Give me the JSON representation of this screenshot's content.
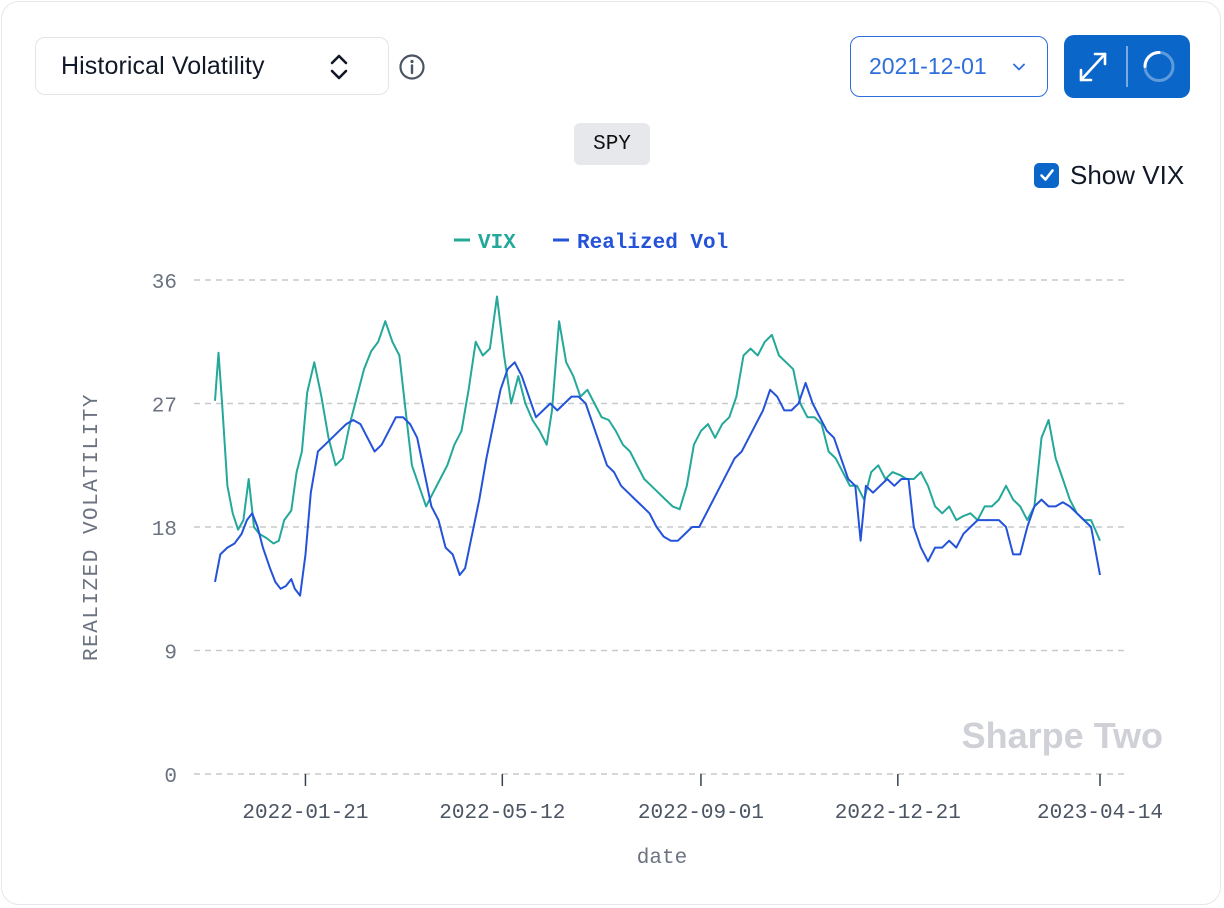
{
  "toolbar": {
    "metric_label": "Historical Volatility",
    "date_value": "2021-12-01",
    "show_vix_label": "Show VIX",
    "show_vix_checked": true,
    "accent_color": "#0a66c9"
  },
  "icons": {
    "metric_chevron": "up-down-chevron-icon",
    "info": "info-icon",
    "date_chevron": "chevron-down-icon",
    "expand": "expand-icon",
    "refresh": "refresh-spinner-icon",
    "checkbox": "checkmark-icon"
  },
  "ticker": "SPY",
  "watermark": "Sharpe Two",
  "chart_data": {
    "type": "line",
    "title": "",
    "xlabel": "date",
    "ylabel": "REALIZED VOLATILITY",
    "ylim": [
      0,
      36
    ],
    "yticks": [
      "0",
      "9",
      "18",
      "27",
      "36"
    ],
    "xlim": [
      "2021-12-01",
      "2023-04-14"
    ],
    "xticks": [
      "2022-01-21",
      "2022-05-12",
      "2022-09-01",
      "2022-12-21",
      "2023-04-14"
    ],
    "grid": true,
    "legend_position": "top-center",
    "series": [
      {
        "name": "VIX",
        "color": "#24a89a",
        "points": [
          [
            "2021-12-01",
            27.2
          ],
          [
            "2021-12-03",
            30.7
          ],
          [
            "2021-12-05",
            27.0
          ],
          [
            "2021-12-08",
            21.0
          ],
          [
            "2021-12-11",
            19.0
          ],
          [
            "2021-12-14",
            17.8
          ],
          [
            "2021-12-17",
            18.5
          ],
          [
            "2021-12-20",
            21.5
          ],
          [
            "2021-12-23",
            18.0
          ],
          [
            "2021-12-26",
            17.5
          ],
          [
            "2021-12-30",
            17.2
          ],
          [
            "2022-01-03",
            16.8
          ],
          [
            "2022-01-06",
            17.0
          ],
          [
            "2022-01-09",
            18.5
          ],
          [
            "2022-01-13",
            19.2
          ],
          [
            "2022-01-16",
            22.0
          ],
          [
            "2022-01-19",
            23.5
          ],
          [
            "2022-01-22",
            27.8
          ],
          [
            "2022-01-26",
            30.0
          ],
          [
            "2022-01-30",
            27.5
          ],
          [
            "2022-02-03",
            24.5
          ],
          [
            "2022-02-07",
            22.5
          ],
          [
            "2022-02-11",
            23.0
          ],
          [
            "2022-02-15",
            25.5
          ],
          [
            "2022-02-19",
            27.5
          ],
          [
            "2022-02-23",
            29.5
          ],
          [
            "2022-02-27",
            30.8
          ],
          [
            "2022-03-03",
            31.5
          ],
          [
            "2022-03-07",
            33.0
          ],
          [
            "2022-03-11",
            31.5
          ],
          [
            "2022-03-15",
            30.5
          ],
          [
            "2022-03-18",
            27.0
          ],
          [
            "2022-03-22",
            22.5
          ],
          [
            "2022-03-26",
            21.0
          ],
          [
            "2022-03-30",
            19.5
          ],
          [
            "2022-04-03",
            20.5
          ],
          [
            "2022-04-07",
            21.5
          ],
          [
            "2022-04-11",
            22.5
          ],
          [
            "2022-04-15",
            24.0
          ],
          [
            "2022-04-19",
            25.0
          ],
          [
            "2022-04-23",
            28.0
          ],
          [
            "2022-04-27",
            31.5
          ],
          [
            "2022-05-01",
            30.5
          ],
          [
            "2022-05-05",
            31.0
          ],
          [
            "2022-05-09",
            34.8
          ],
          [
            "2022-05-13",
            30.5
          ],
          [
            "2022-05-17",
            27.0
          ],
          [
            "2022-05-21",
            29.0
          ],
          [
            "2022-05-25",
            27.0
          ],
          [
            "2022-05-29",
            25.8
          ],
          [
            "2022-06-02",
            25.0
          ],
          [
            "2022-06-06",
            24.0
          ],
          [
            "2022-06-09",
            26.5
          ],
          [
            "2022-06-13",
            33.0
          ],
          [
            "2022-06-17",
            30.0
          ],
          [
            "2022-06-21",
            29.0
          ],
          [
            "2022-06-25",
            27.5
          ],
          [
            "2022-06-29",
            28.0
          ],
          [
            "2022-07-03",
            27.0
          ],
          [
            "2022-07-07",
            26.0
          ],
          [
            "2022-07-11",
            25.8
          ],
          [
            "2022-07-15",
            25.0
          ],
          [
            "2022-07-19",
            24.0
          ],
          [
            "2022-07-23",
            23.5
          ],
          [
            "2022-07-27",
            22.5
          ],
          [
            "2022-07-31",
            21.5
          ],
          [
            "2022-08-04",
            21.0
          ],
          [
            "2022-08-08",
            20.5
          ],
          [
            "2022-08-12",
            20.0
          ],
          [
            "2022-08-16",
            19.5
          ],
          [
            "2022-08-20",
            19.3
          ],
          [
            "2022-08-24",
            21.0
          ],
          [
            "2022-08-28",
            24.0
          ],
          [
            "2022-09-01",
            25.0
          ],
          [
            "2022-09-05",
            25.5
          ],
          [
            "2022-09-09",
            24.5
          ],
          [
            "2022-09-13",
            25.5
          ],
          [
            "2022-09-17",
            26.0
          ],
          [
            "2022-09-21",
            27.5
          ],
          [
            "2022-09-25",
            30.5
          ],
          [
            "2022-09-29",
            31.0
          ],
          [
            "2022-10-03",
            30.5
          ],
          [
            "2022-10-07",
            31.5
          ],
          [
            "2022-10-11",
            32.0
          ],
          [
            "2022-10-15",
            30.5
          ],
          [
            "2022-10-19",
            30.0
          ],
          [
            "2022-10-23",
            29.5
          ],
          [
            "2022-10-27",
            27.0
          ],
          [
            "2022-10-31",
            26.0
          ],
          [
            "2022-11-04",
            26.0
          ],
          [
            "2022-11-08",
            25.5
          ],
          [
            "2022-11-12",
            23.5
          ],
          [
            "2022-11-16",
            23.0
          ],
          [
            "2022-11-20",
            22.0
          ],
          [
            "2022-11-24",
            21.0
          ],
          [
            "2022-11-28",
            21.0
          ],
          [
            "2022-12-02",
            20.0
          ],
          [
            "2022-12-06",
            22.0
          ],
          [
            "2022-12-10",
            22.5
          ],
          [
            "2022-12-14",
            21.5
          ],
          [
            "2022-12-18",
            22.0
          ],
          [
            "2022-12-22",
            21.8
          ],
          [
            "2022-12-26",
            21.5
          ],
          [
            "2022-12-30",
            21.5
          ],
          [
            "2023-01-03",
            22.0
          ],
          [
            "2023-01-07",
            21.0
          ],
          [
            "2023-01-11",
            19.5
          ],
          [
            "2023-01-15",
            19.0
          ],
          [
            "2023-01-19",
            19.5
          ],
          [
            "2023-01-23",
            18.5
          ],
          [
            "2023-01-27",
            18.8
          ],
          [
            "2023-01-31",
            19.0
          ],
          [
            "2023-02-04",
            18.5
          ],
          [
            "2023-02-08",
            19.5
          ],
          [
            "2023-02-12",
            19.5
          ],
          [
            "2023-02-16",
            20.0
          ],
          [
            "2023-02-20",
            21.0
          ],
          [
            "2023-02-24",
            20.0
          ],
          [
            "2023-02-28",
            19.5
          ],
          [
            "2023-03-04",
            18.5
          ],
          [
            "2023-03-08",
            19.5
          ],
          [
            "2023-03-12",
            24.5
          ],
          [
            "2023-03-16",
            25.8
          ],
          [
            "2023-03-20",
            23.0
          ],
          [
            "2023-03-24",
            21.5
          ],
          [
            "2023-03-28",
            20.0
          ],
          [
            "2023-04-01",
            19.0
          ],
          [
            "2023-04-05",
            18.5
          ],
          [
            "2023-04-09",
            18.5
          ],
          [
            "2023-04-14",
            17.0
          ]
        ]
      },
      {
        "name": "Realized Vol",
        "color": "#2453d9",
        "points": [
          [
            "2021-12-01",
            14.0
          ],
          [
            "2021-12-04",
            16.0
          ],
          [
            "2021-12-08",
            16.5
          ],
          [
            "2021-12-12",
            16.8
          ],
          [
            "2021-12-16",
            17.5
          ],
          [
            "2021-12-19",
            18.5
          ],
          [
            "2021-12-22",
            19.0
          ],
          [
            "2021-12-25",
            18.0
          ],
          [
            "2021-12-28",
            16.5
          ],
          [
            "2022-01-01",
            15.0
          ],
          [
            "2022-01-04",
            14.0
          ],
          [
            "2022-01-07",
            13.5
          ],
          [
            "2022-01-10",
            13.7
          ],
          [
            "2022-01-13",
            14.2
          ],
          [
            "2022-01-15",
            13.5
          ],
          [
            "2022-01-18",
            13.0
          ],
          [
            "2022-01-21",
            16.0
          ],
          [
            "2022-01-24",
            20.5
          ],
          [
            "2022-01-28",
            23.5
          ],
          [
            "2022-02-01",
            24.0
          ],
          [
            "2022-02-05",
            24.5
          ],
          [
            "2022-02-09",
            25.0
          ],
          [
            "2022-02-13",
            25.5
          ],
          [
            "2022-02-17",
            25.8
          ],
          [
            "2022-02-21",
            25.5
          ],
          [
            "2022-02-25",
            24.5
          ],
          [
            "2022-03-01",
            23.5
          ],
          [
            "2022-03-05",
            24.0
          ],
          [
            "2022-03-09",
            25.0
          ],
          [
            "2022-03-13",
            26.0
          ],
          [
            "2022-03-17",
            26.0
          ],
          [
            "2022-03-21",
            25.5
          ],
          [
            "2022-03-25",
            24.5
          ],
          [
            "2022-03-29",
            22.0
          ],
          [
            "2022-04-02",
            19.5
          ],
          [
            "2022-04-06",
            18.5
          ],
          [
            "2022-04-10",
            16.5
          ],
          [
            "2022-04-14",
            16.0
          ],
          [
            "2022-04-18",
            14.5
          ],
          [
            "2022-04-21",
            15.0
          ],
          [
            "2022-04-25",
            17.5
          ],
          [
            "2022-04-29",
            20.0
          ],
          [
            "2022-05-03",
            23.0
          ],
          [
            "2022-05-07",
            25.5
          ],
          [
            "2022-05-11",
            28.0
          ],
          [
            "2022-05-15",
            29.5
          ],
          [
            "2022-05-19",
            30.0
          ],
          [
            "2022-05-23",
            29.0
          ],
          [
            "2022-05-27",
            27.5
          ],
          [
            "2022-05-31",
            26.0
          ],
          [
            "2022-06-04",
            26.5
          ],
          [
            "2022-06-08",
            27.0
          ],
          [
            "2022-06-12",
            26.5
          ],
          [
            "2022-06-16",
            27.0
          ],
          [
            "2022-06-20",
            27.5
          ],
          [
            "2022-06-24",
            27.5
          ],
          [
            "2022-06-28",
            27.0
          ],
          [
            "2022-07-02",
            25.5
          ],
          [
            "2022-07-06",
            24.0
          ],
          [
            "2022-07-10",
            22.5
          ],
          [
            "2022-07-14",
            22.0
          ],
          [
            "2022-07-18",
            21.0
          ],
          [
            "2022-07-22",
            20.5
          ],
          [
            "2022-07-26",
            20.0
          ],
          [
            "2022-07-30",
            19.5
          ],
          [
            "2022-08-03",
            19.0
          ],
          [
            "2022-08-07",
            18.0
          ],
          [
            "2022-08-11",
            17.3
          ],
          [
            "2022-08-15",
            17.0
          ],
          [
            "2022-08-19",
            17.0
          ],
          [
            "2022-08-23",
            17.5
          ],
          [
            "2022-08-27",
            18.0
          ],
          [
            "2022-08-31",
            18.0
          ],
          [
            "2022-09-04",
            19.0
          ],
          [
            "2022-09-08",
            20.0
          ],
          [
            "2022-09-12",
            21.0
          ],
          [
            "2022-09-16",
            22.0
          ],
          [
            "2022-09-20",
            23.0
          ],
          [
            "2022-09-24",
            23.5
          ],
          [
            "2022-09-28",
            24.5
          ],
          [
            "2022-10-02",
            25.5
          ],
          [
            "2022-10-06",
            26.5
          ],
          [
            "2022-10-10",
            28.0
          ],
          [
            "2022-10-14",
            27.5
          ],
          [
            "2022-10-18",
            26.5
          ],
          [
            "2022-10-22",
            26.5
          ],
          [
            "2022-10-26",
            27.0
          ],
          [
            "2022-10-30",
            28.5
          ],
          [
            "2022-11-03",
            27.0
          ],
          [
            "2022-11-07",
            26.0
          ],
          [
            "2022-11-11",
            25.0
          ],
          [
            "2022-11-15",
            24.5
          ],
          [
            "2022-11-19",
            23.0
          ],
          [
            "2022-11-23",
            21.5
          ],
          [
            "2022-11-27",
            21.0
          ],
          [
            "2022-11-30",
            17.0
          ],
          [
            "2022-12-03",
            21.0
          ],
          [
            "2022-12-07",
            20.5
          ],
          [
            "2022-12-11",
            21.0
          ],
          [
            "2022-12-15",
            21.5
          ],
          [
            "2022-12-19",
            21.0
          ],
          [
            "2022-12-23",
            21.5
          ],
          [
            "2022-12-27",
            21.5
          ],
          [
            "2022-12-30",
            18.0
          ],
          [
            "2023-01-03",
            16.5
          ],
          [
            "2023-01-07",
            15.5
          ],
          [
            "2023-01-11",
            16.5
          ],
          [
            "2023-01-15",
            16.5
          ],
          [
            "2023-01-19",
            17.0
          ],
          [
            "2023-01-23",
            16.5
          ],
          [
            "2023-01-27",
            17.5
          ],
          [
            "2023-01-31",
            18.0
          ],
          [
            "2023-02-04",
            18.5
          ],
          [
            "2023-02-08",
            18.5
          ],
          [
            "2023-02-12",
            18.5
          ],
          [
            "2023-02-16",
            18.5
          ],
          [
            "2023-02-20",
            18.0
          ],
          [
            "2023-02-24",
            16.0
          ],
          [
            "2023-02-28",
            16.0
          ],
          [
            "2023-03-04",
            18.0
          ],
          [
            "2023-03-08",
            19.5
          ],
          [
            "2023-03-12",
            20.0
          ],
          [
            "2023-03-16",
            19.5
          ],
          [
            "2023-03-20",
            19.5
          ],
          [
            "2023-03-24",
            19.8
          ],
          [
            "2023-03-28",
            19.5
          ],
          [
            "2023-04-01",
            19.0
          ],
          [
            "2023-04-05",
            18.5
          ],
          [
            "2023-04-09",
            18.0
          ],
          [
            "2023-04-14",
            14.5
          ]
        ]
      }
    ]
  }
}
